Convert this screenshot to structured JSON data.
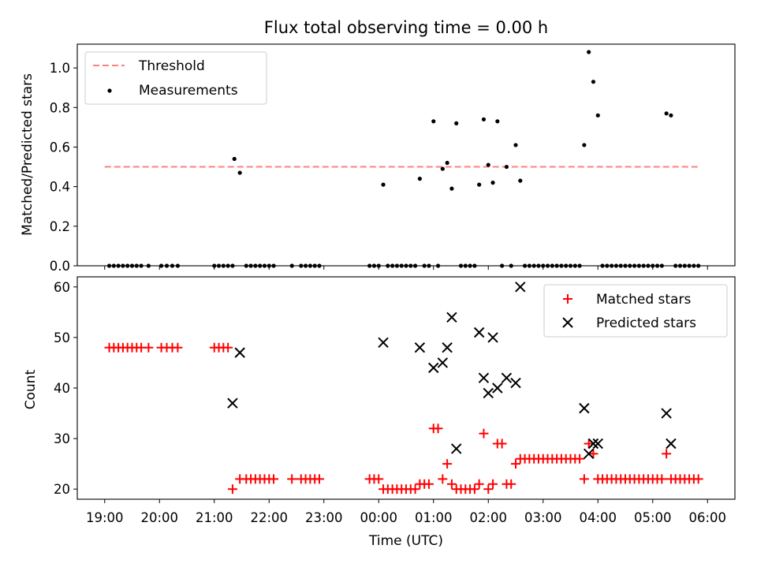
{
  "chart_data": [
    {
      "type": "scatter",
      "title": "Flux total observing time = 0.00 h",
      "ylabel": "Matched/Predicted stars",
      "xlabel": "",
      "xlim": [
        "18:30",
        "06:30"
      ],
      "ylim": [
        0,
        1.12
      ],
      "yticks": [
        0.0,
        0.2,
        0.4,
        0.6,
        0.8,
        1.0
      ],
      "ytick_labels": [
        "0.0",
        "0.2",
        "0.4",
        "0.6",
        "0.8",
        "1.0"
      ],
      "legend_position": "upper-left",
      "grid": false,
      "threshold": {
        "name": "Threshold",
        "value": 0.5,
        "x_range": [
          "19:00",
          "05:50"
        ],
        "color": "#ff7f7f",
        "style": "dashed"
      },
      "series": [
        {
          "name": "Measurements",
          "color": "#000000",
          "points": [
            [
              "19:05",
              0
            ],
            [
              "19:10",
              0
            ],
            [
              "19:15",
              0
            ],
            [
              "19:20",
              0
            ],
            [
              "19:25",
              0
            ],
            [
              "19:30",
              0
            ],
            [
              "19:35",
              0
            ],
            [
              "19:40",
              0
            ],
            [
              "19:48",
              0
            ],
            [
              "20:02",
              0
            ],
            [
              "20:08",
              0
            ],
            [
              "20:14",
              0
            ],
            [
              "20:20",
              0
            ],
            [
              "21:00",
              0
            ],
            [
              "21:05",
              0
            ],
            [
              "21:10",
              0
            ],
            [
              "21:15",
              0
            ],
            [
              "21:20",
              0
            ],
            [
              "21:22",
              0.54
            ],
            [
              "21:28",
              0.47
            ],
            [
              "21:35",
              0
            ],
            [
              "21:40",
              0
            ],
            [
              "21:45",
              0
            ],
            [
              "21:50",
              0
            ],
            [
              "21:55",
              0
            ],
            [
              "22:00",
              0
            ],
            [
              "22:05",
              0
            ],
            [
              "22:25",
              0
            ],
            [
              "22:35",
              0
            ],
            [
              "22:40",
              0
            ],
            [
              "22:45",
              0
            ],
            [
              "22:50",
              0
            ],
            [
              "22:55",
              0
            ],
            [
              "23:50",
              0
            ],
            [
              "23:55",
              0
            ],
            [
              "24:00",
              0
            ],
            [
              "24:05",
              0.41
            ],
            [
              "24:10",
              0
            ],
            [
              "24:15",
              0
            ],
            [
              "24:20",
              0
            ],
            [
              "24:25",
              0
            ],
            [
              "24:30",
              0
            ],
            [
              "24:35",
              0
            ],
            [
              "24:40",
              0
            ],
            [
              "24:45",
              0.44
            ],
            [
              "24:50",
              0
            ],
            [
              "24:55",
              0
            ],
            [
              "25:00",
              0.73
            ],
            [
              "25:05",
              0
            ],
            [
              "25:10",
              0.49
            ],
            [
              "25:15",
              0.52
            ],
            [
              "25:20",
              0.39
            ],
            [
              "25:25",
              0.72
            ],
            [
              "25:30",
              0
            ],
            [
              "25:35",
              0
            ],
            [
              "25:40",
              0
            ],
            [
              "25:45",
              0
            ],
            [
              "25:50",
              0.41
            ],
            [
              "25:55",
              0.74
            ],
            [
              "26:00",
              0.51
            ],
            [
              "26:05",
              0.42
            ],
            [
              "26:10",
              0.73
            ],
            [
              "26:15",
              0
            ],
            [
              "26:20",
              0.5
            ],
            [
              "26:25",
              0
            ],
            [
              "26:30",
              0.61
            ],
            [
              "26:35",
              0.43
            ],
            [
              "26:40",
              0
            ],
            [
              "26:45",
              0
            ],
            [
              "26:50",
              0
            ],
            [
              "26:55",
              0
            ],
            [
              "27:00",
              0
            ],
            [
              "27:05",
              0
            ],
            [
              "27:10",
              0
            ],
            [
              "27:15",
              0
            ],
            [
              "27:20",
              0
            ],
            [
              "27:25",
              0
            ],
            [
              "27:30",
              0
            ],
            [
              "27:35",
              0
            ],
            [
              "27:40",
              0
            ],
            [
              "27:45",
              0.61
            ],
            [
              "27:50",
              1.08
            ],
            [
              "27:55",
              0.93
            ],
            [
              "28:00",
              0.76
            ],
            [
              "28:05",
              0
            ],
            [
              "28:10",
              0
            ],
            [
              "28:15",
              0
            ],
            [
              "28:20",
              0
            ],
            [
              "28:25",
              0
            ],
            [
              "28:30",
              0
            ],
            [
              "28:35",
              0
            ],
            [
              "28:40",
              0
            ],
            [
              "28:45",
              0
            ],
            [
              "28:50",
              0
            ],
            [
              "28:55",
              0
            ],
            [
              "29:00",
              0
            ],
            [
              "29:05",
              0
            ],
            [
              "29:10",
              0
            ],
            [
              "29:15",
              0.77
            ],
            [
              "29:20",
              0.76
            ],
            [
              "29:25",
              0
            ],
            [
              "29:30",
              0
            ],
            [
              "29:35",
              0
            ],
            [
              "29:40",
              0
            ],
            [
              "29:45",
              0
            ],
            [
              "29:50",
              0
            ]
          ]
        }
      ]
    },
    {
      "type": "scatter",
      "title": "",
      "xlabel": "Time (UTC)",
      "ylabel": "Count",
      "xlim": [
        "18:30",
        "06:30"
      ],
      "ylim": [
        18,
        62
      ],
      "yticks": [
        20,
        30,
        40,
        50,
        60
      ],
      "ytick_labels": [
        "20",
        "30",
        "40",
        "50",
        "60"
      ],
      "xtick_labels": [
        "19:00",
        "20:00",
        "21:00",
        "22:00",
        "23:00",
        "00:00",
        "01:00",
        "02:00",
        "03:00",
        "04:00",
        "05:00",
        "06:00"
      ],
      "legend_position": "upper-right",
      "grid": false,
      "series": [
        {
          "name": "Matched stars",
          "color": "#ff0000",
          "marker": "+",
          "points": [
            [
              "19:05",
              48
            ],
            [
              "19:10",
              48
            ],
            [
              "19:15",
              48
            ],
            [
              "19:20",
              48
            ],
            [
              "19:25",
              48
            ],
            [
              "19:30",
              48
            ],
            [
              "19:35",
              48
            ],
            [
              "19:40",
              48
            ],
            [
              "19:48",
              48
            ],
            [
              "20:02",
              48
            ],
            [
              "20:08",
              48
            ],
            [
              "20:14",
              48
            ],
            [
              "20:20",
              48
            ],
            [
              "21:00",
              48
            ],
            [
              "21:05",
              48
            ],
            [
              "21:10",
              48
            ],
            [
              "21:15",
              48
            ],
            [
              "21:20",
              20
            ],
            [
              "21:28",
              22
            ],
            [
              "21:35",
              22
            ],
            [
              "21:40",
              22
            ],
            [
              "21:45",
              22
            ],
            [
              "21:50",
              22
            ],
            [
              "21:55",
              22
            ],
            [
              "22:00",
              22
            ],
            [
              "22:05",
              22
            ],
            [
              "22:25",
              22
            ],
            [
              "22:35",
              22
            ],
            [
              "22:40",
              22
            ],
            [
              "22:45",
              22
            ],
            [
              "22:50",
              22
            ],
            [
              "22:55",
              22
            ],
            [
              "23:50",
              22
            ],
            [
              "23:55",
              22
            ],
            [
              "24:00",
              22
            ],
            [
              "24:05",
              20
            ],
            [
              "24:10",
              20
            ],
            [
              "24:15",
              20
            ],
            [
              "24:20",
              20
            ],
            [
              "24:25",
              20
            ],
            [
              "24:30",
              20
            ],
            [
              "24:35",
              20
            ],
            [
              "24:40",
              20
            ],
            [
              "24:45",
              21
            ],
            [
              "24:50",
              21
            ],
            [
              "24:55",
              21
            ],
            [
              "25:00",
              32
            ],
            [
              "25:05",
              32
            ],
            [
              "25:10",
              22
            ],
            [
              "25:15",
              25
            ],
            [
              "25:20",
              21
            ],
            [
              "25:25",
              20
            ],
            [
              "25:30",
              20
            ],
            [
              "25:35",
              20
            ],
            [
              "25:40",
              20
            ],
            [
              "25:45",
              20
            ],
            [
              "25:50",
              21
            ],
            [
              "25:55",
              31
            ],
            [
              "26:00",
              20
            ],
            [
              "26:05",
              21
            ],
            [
              "26:10",
              29
            ],
            [
              "26:15",
              29
            ],
            [
              "26:20",
              21
            ],
            [
              "26:25",
              21
            ],
            [
              "26:30",
              25
            ],
            [
              "26:35",
              26
            ],
            [
              "26:40",
              26
            ],
            [
              "26:45",
              26
            ],
            [
              "26:50",
              26
            ],
            [
              "26:55",
              26
            ],
            [
              "27:00",
              26
            ],
            [
              "27:05",
              26
            ],
            [
              "27:10",
              26
            ],
            [
              "27:15",
              26
            ],
            [
              "27:20",
              26
            ],
            [
              "27:25",
              26
            ],
            [
              "27:30",
              26
            ],
            [
              "27:35",
              26
            ],
            [
              "27:40",
              26
            ],
            [
              "27:45",
              22
            ],
            [
              "27:50",
              29
            ],
            [
              "27:55",
              27
            ],
            [
              "28:00",
              22
            ],
            [
              "28:05",
              22
            ],
            [
              "28:10",
              22
            ],
            [
              "28:15",
              22
            ],
            [
              "28:20",
              22
            ],
            [
              "28:25",
              22
            ],
            [
              "28:30",
              22
            ],
            [
              "28:35",
              22
            ],
            [
              "28:40",
              22
            ],
            [
              "28:45",
              22
            ],
            [
              "28:50",
              22
            ],
            [
              "28:55",
              22
            ],
            [
              "29:00",
              22
            ],
            [
              "29:05",
              22
            ],
            [
              "29:10",
              22
            ],
            [
              "29:15",
              27
            ],
            [
              "29:20",
              22
            ],
            [
              "29:25",
              22
            ],
            [
              "29:30",
              22
            ],
            [
              "29:35",
              22
            ],
            [
              "29:40",
              22
            ],
            [
              "29:45",
              22
            ],
            [
              "29:50",
              22
            ]
          ]
        },
        {
          "name": "Predicted stars",
          "color": "#000000",
          "marker": "x",
          "points": [
            [
              "21:20",
              37
            ],
            [
              "21:28",
              47
            ],
            [
              "24:05",
              49
            ],
            [
              "24:45",
              48
            ],
            [
              "25:00",
              44
            ],
            [
              "25:10",
              45
            ],
            [
              "25:15",
              48
            ],
            [
              "25:20",
              54
            ],
            [
              "25:25",
              28
            ],
            [
              "25:50",
              51
            ],
            [
              "25:55",
              42
            ],
            [
              "26:00",
              39
            ],
            [
              "26:05",
              50
            ],
            [
              "26:10",
              40
            ],
            [
              "26:20",
              42
            ],
            [
              "26:30",
              41
            ],
            [
              "26:35",
              60
            ],
            [
              "27:45",
              36
            ],
            [
              "27:50",
              27
            ],
            [
              "27:55",
              29
            ],
            [
              "28:00",
              29
            ],
            [
              "29:15",
              35
            ],
            [
              "29:20",
              29
            ]
          ]
        }
      ]
    }
  ]
}
